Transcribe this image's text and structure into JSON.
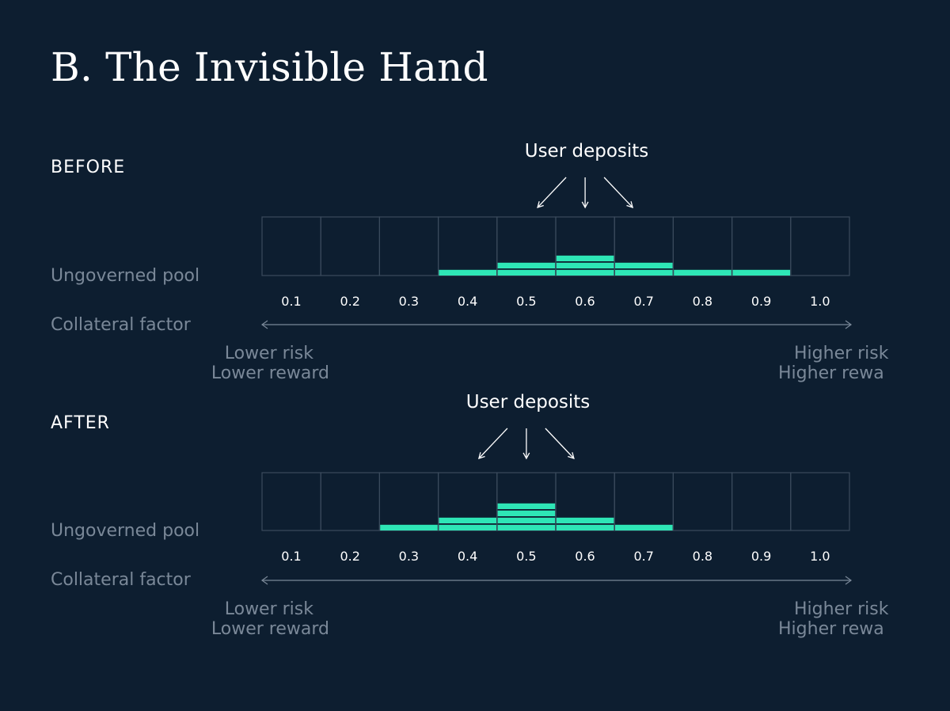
{
  "title": "B. The Invisible Hand",
  "sections": [
    {
      "label": "BEFORE",
      "deposits_label": "User deposits",
      "pool_label": "Ungoverned pool",
      "axis_label": "Collateral factor",
      "risk_low_1": "Lower risk",
      "risk_low_2": "Lower reward",
      "risk_high_1": "Higher risk",
      "risk_high_2": "Higher rewa",
      "ticks": [
        "0.1",
        "0.2",
        "0.3",
        "0.4",
        "0.5",
        "0.6",
        "0.7",
        "0.8",
        "0.9",
        "1.0"
      ],
      "stack_counts": [
        0,
        0,
        0,
        1,
        2,
        3,
        2,
        1,
        1,
        0
      ],
      "deposit_center_index": 5
    },
    {
      "label": "AFTER",
      "deposits_label": "User deposits",
      "pool_label": "Ungoverned pool",
      "axis_label": "Collateral factor",
      "risk_low_1": "Lower risk",
      "risk_low_2": "Lower reward",
      "risk_high_1": "Higher risk",
      "risk_high_2": "Higher rewa",
      "ticks": [
        "0.1",
        "0.2",
        "0.3",
        "0.4",
        "0.5",
        "0.6",
        "0.7",
        "0.8",
        "0.9",
        "1.0"
      ],
      "stack_counts": [
        0,
        0,
        1,
        2,
        4,
        2,
        1,
        0,
        0,
        0
      ],
      "deposit_center_index": 4
    }
  ],
  "colors": {
    "background": "#0d1e30",
    "bar": "#2ee6b6",
    "grid": "#3a4a5c",
    "muted_text": "#7a8898"
  }
}
